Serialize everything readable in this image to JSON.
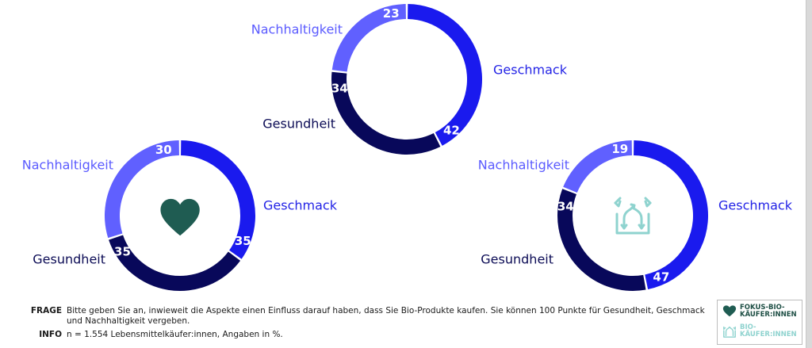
{
  "colors": {
    "nachhaltigkeit": "#6060ff",
    "geschmack": "#1a1aee",
    "gesundheit": "#08085a",
    "label_nachhaltigkeit": "#5b5bff",
    "label_geschmack": "#2323e6",
    "label_gesundheit": "#0b0b55",
    "heart": "#1f5c52",
    "bio": "#8fd3cf"
  },
  "chart_data": [
    {
      "type": "pie",
      "subtype": "donut",
      "group": "Lebensmittelkäufer:innen",
      "icon": "none",
      "categories": [
        "Geschmack",
        "Gesundheit",
        "Nachhaltigkeit"
      ],
      "values": [
        42,
        34,
        23
      ],
      "value_labels": [
        "42",
        "34",
        "23"
      ]
    },
    {
      "type": "pie",
      "subtype": "donut",
      "group": "Fokus-Bio-Käufer:innen",
      "icon": "heart-icon",
      "categories": [
        "Geschmack",
        "Gesundheit",
        "Nachhaltigkeit"
      ],
      "values": [
        35,
        35,
        30
      ],
      "value_labels": [
        "35",
        "35",
        "30"
      ]
    },
    {
      "type": "pie",
      "subtype": "donut",
      "group": "Bio-Käufer:innen",
      "icon": "bio-arrows-icon",
      "categories": [
        "Geschmack",
        "Gesundheit",
        "Nachhaltigkeit"
      ],
      "values": [
        47,
        34,
        19
      ],
      "value_labels": [
        "47",
        "34",
        "19"
      ]
    }
  ],
  "footer": {
    "frage_key": "FRAGE",
    "frage_text": "Bitte geben Sie an, inwieweit die Aspekte einen Einfluss darauf haben, dass Sie Bio-Produkte kaufen. Sie können 100 Punkte für Gesundheit, Geschmack und Nachhaltigkeit vergeben.",
    "info_key": "INFO",
    "info_text": "n = 1.554 Lebensmittelkäufer:innen, Angaben in %."
  },
  "legend": {
    "fokus_label": "FOKUS-BIO-KÄUFER:INNEN",
    "bio_label": "BIO-KÄUFER:INNEN"
  }
}
